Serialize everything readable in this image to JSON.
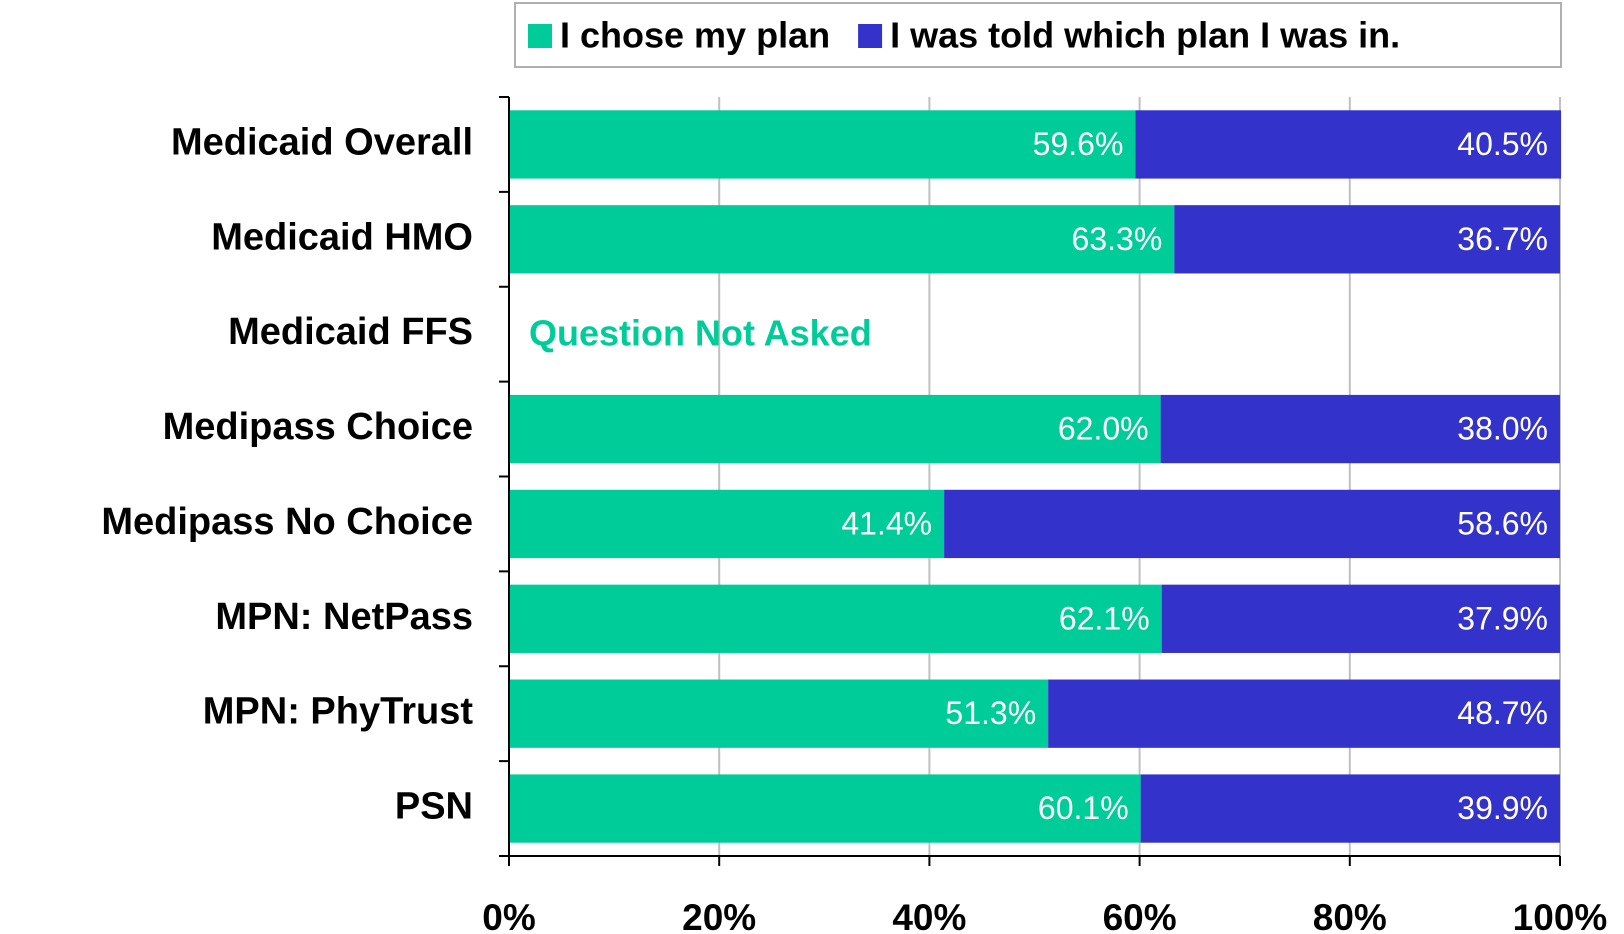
{
  "chart_data": {
    "type": "stacked-bar-horizontal",
    "categories": [
      "Medicaid Overall",
      "Medicaid HMO",
      "Medicaid FFS",
      "Medipass Choice",
      "Medipass No Choice",
      "MPN: NetPass",
      "MPN: PhyTrust",
      "PSN"
    ],
    "series": [
      {
        "name": "I chose my plan",
        "color": "#00cc99",
        "values": [
          59.6,
          63.3,
          null,
          62.0,
          41.4,
          62.1,
          51.3,
          60.1
        ],
        "value_labels": [
          "59.6%",
          "63.3%",
          null,
          "62.0%",
          "41.4%",
          "62.1%",
          "51.3%",
          "60.1%"
        ]
      },
      {
        "name": "I was told which plan I was in.",
        "color": "#3333cc",
        "values": [
          40.5,
          36.7,
          null,
          38.0,
          58.6,
          37.9,
          48.7,
          39.9
        ],
        "value_labels": [
          "40.5%",
          "36.7%",
          null,
          "38.0%",
          "58.6%",
          "37.9%",
          "48.7%",
          "39.9%"
        ]
      }
    ],
    "annotation": "Question Not Asked",
    "xlim": [
      0,
      100
    ],
    "xticks": [
      {
        "value": 0,
        "label": "0%"
      },
      {
        "value": 20,
        "label": "20%"
      },
      {
        "value": 40,
        "label": "40%"
      },
      {
        "value": 60,
        "label": "60%"
      },
      {
        "value": 80,
        "label": "80%"
      },
      {
        "value": 100,
        "label": "100%"
      }
    ],
    "grid": true,
    "legend": "top"
  }
}
